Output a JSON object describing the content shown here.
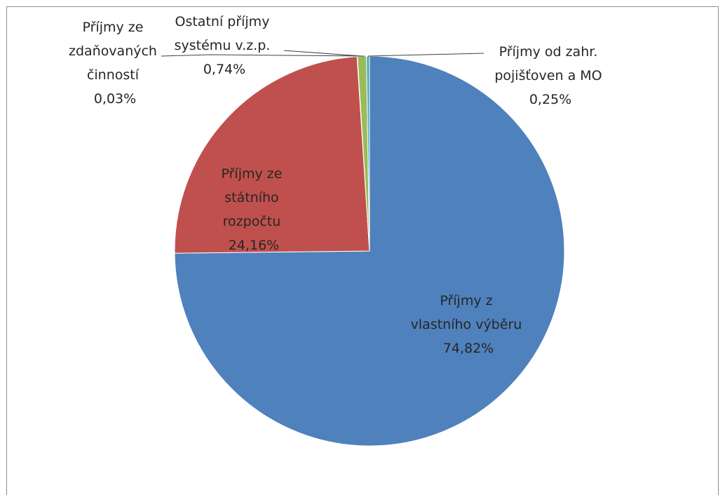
{
  "chart_data": {
    "type": "pie",
    "title": "",
    "slices": [
      {
        "label": [
          "Příjmy z",
          "vlastního výběru"
        ],
        "pct_text": "74,82%",
        "value": 74.82,
        "color": "#4f81bd"
      },
      {
        "label": [
          "Příjmy ze",
          "státního",
          "rozpočtu"
        ],
        "pct_text": "24,16%",
        "value": 24.16,
        "color": "#c0504d"
      },
      {
        "label": [
          "Příjmy ze",
          "zdaňovaných",
          "činností"
        ],
        "pct_text": "0,03%",
        "value": 0.03,
        "color": "#8064a2"
      },
      {
        "label": [
          "Ostatní příjmy",
          "systému v.z.p."
        ],
        "pct_text": "0,74%",
        "value": 0.74,
        "color": "#9bbb59"
      },
      {
        "label": [
          "Příjmy od zahr.",
          "pojišťoven a MO"
        ],
        "pct_text": "0,25%",
        "value": 0.25,
        "color": "#4bacc6"
      }
    ],
    "legend": "none",
    "start": "top",
    "direction": "clockwise"
  }
}
